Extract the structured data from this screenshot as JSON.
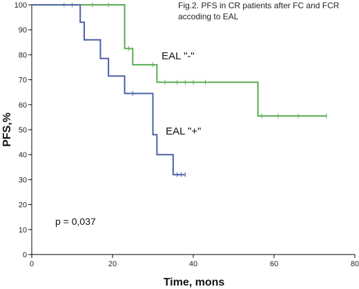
{
  "chart_data": {
    "type": "line",
    "title_lines": [
      "Fig.2. PFS in CR patients after FC and FCR",
      "accoding to EAL"
    ],
    "xlabel": "Time, mons",
    "ylabel": "PFS,%",
    "xlim": [
      0,
      80
    ],
    "ylim": [
      0,
      100
    ],
    "xticks": [
      0,
      20,
      40,
      60,
      80
    ],
    "yticks": [
      0,
      10,
      20,
      30,
      40,
      50,
      60,
      70,
      80,
      90,
      100
    ],
    "grid": false,
    "annotation": "p = 0,037",
    "series": [
      {
        "name": "EAL \"-\"",
        "color": "#5aac50",
        "x": [
          0,
          23,
          23,
          25,
          25,
          31,
          31,
          56,
          56,
          73
        ],
        "y": [
          100,
          100,
          82.5,
          82.5,
          76,
          76,
          69,
          69,
          55.5,
          55.5
        ],
        "censored": [
          [
            8,
            100
          ],
          [
            10,
            100
          ],
          [
            15,
            100
          ],
          [
            19,
            100
          ],
          [
            24,
            82.5
          ],
          [
            30,
            76
          ],
          [
            33,
            69
          ],
          [
            36,
            69
          ],
          [
            38,
            69
          ],
          [
            40,
            69
          ],
          [
            43,
            69
          ],
          [
            57,
            55.5
          ],
          [
            61,
            55.5
          ],
          [
            66,
            55.5
          ],
          [
            73,
            55.5
          ]
        ]
      },
      {
        "name": "EAL \"+\"",
        "color": "#4a5fa6",
        "x": [
          0,
          12,
          12,
          13,
          13,
          17,
          17,
          19,
          19,
          23,
          23,
          30,
          30,
          31,
          31,
          35,
          35,
          38
        ],
        "y": [
          100,
          100,
          93,
          93,
          86,
          86,
          78.5,
          78.5,
          71.5,
          71.5,
          64.5,
          64.5,
          48,
          48,
          40,
          40,
          32,
          32
        ],
        "censored": [
          [
            25,
            64.5
          ],
          [
            36,
            32
          ],
          [
            37,
            32
          ],
          [
            38,
            32
          ]
        ]
      }
    ]
  }
}
